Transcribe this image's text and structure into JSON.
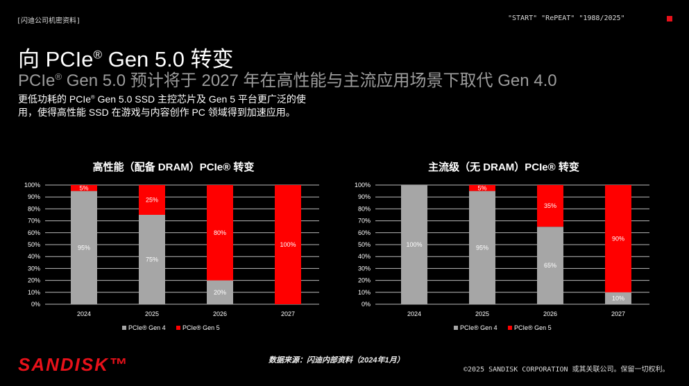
{
  "header": {
    "confidential": "[闪迪公司机密资料]",
    "tags": "\"START\" \"RePEAT\" \"1988/2025\""
  },
  "title": {
    "prefix": "向 PCIe",
    "suffix": " Gen 5.0 转变",
    "reg": "®"
  },
  "subtitle": {
    "prefix": "PCIe",
    "suffix": " Gen 5.0 预计将于 2027 年在高性能与主流应用场景下取代 Gen 4.0",
    "reg": "®"
  },
  "description": {
    "part1": "更低功耗的 PCIe",
    "part2": " Gen 5.0 SSD 主控芯片及 Gen 5 平台更广泛的使用，使得高性能 SSD 在游戏与内容创作 PC 领域得到加速应用。",
    "reg": "®"
  },
  "colors": {
    "gen4": "#a6a6a6",
    "gen5": "#ff0000",
    "grid": "#bdbdbd",
    "accent": "#e8111a"
  },
  "chart_data": [
    {
      "type": "bar",
      "stacked": true,
      "title": "高性能（配备 DRAM）PCIe® 转变",
      "categories": [
        "2024",
        "2025",
        "2026",
        "2027"
      ],
      "series": [
        {
          "name": "PCIe® Gen 4",
          "values": [
            95,
            75,
            20,
            0
          ],
          "labels": [
            "95%",
            "75%",
            "20%",
            ""
          ]
        },
        {
          "name": "PCIe® Gen 5",
          "values": [
            5,
            25,
            80,
            100
          ],
          "labels": [
            "5%",
            "25%",
            "80%",
            "100%"
          ]
        }
      ],
      "yticks": [
        "0%",
        "10%",
        "20%",
        "30%",
        "40%",
        "50%",
        "60%",
        "70%",
        "80%",
        "90%",
        "100%"
      ],
      "ylim": [
        0,
        100
      ],
      "legend": [
        "PCIe® Gen 4",
        "PCIe® Gen 5"
      ]
    },
    {
      "type": "bar",
      "stacked": true,
      "title": "主流级（无 DRAM）PCIe® 转变",
      "categories": [
        "2024",
        "2025",
        "2026",
        "2027"
      ],
      "series": [
        {
          "name": "PCIe® Gen 4",
          "values": [
            100,
            95,
            65,
            10
          ],
          "labels": [
            "100%",
            "95%",
            "65%",
            "10%"
          ]
        },
        {
          "name": "PCIe® Gen 5",
          "values": [
            0,
            5,
            35,
            90
          ],
          "labels": [
            "",
            "5%",
            "35%",
            "90%"
          ]
        }
      ],
      "yticks": [
        "0%",
        "10%",
        "20%",
        "30%",
        "40%",
        "50%",
        "60%",
        "70%",
        "80%",
        "90%",
        "100%"
      ],
      "ylim": [
        0,
        100
      ],
      "legend": [
        "PCIe® Gen 4",
        "PCIe® Gen 5"
      ]
    }
  ],
  "footer": {
    "source": "数据来源：闪迪内部资料（2024年1月）",
    "copyright": "©2025 SANDISK CORPORATION 或其关联公司。保留一切权利。",
    "logo": "SANDISK™"
  }
}
